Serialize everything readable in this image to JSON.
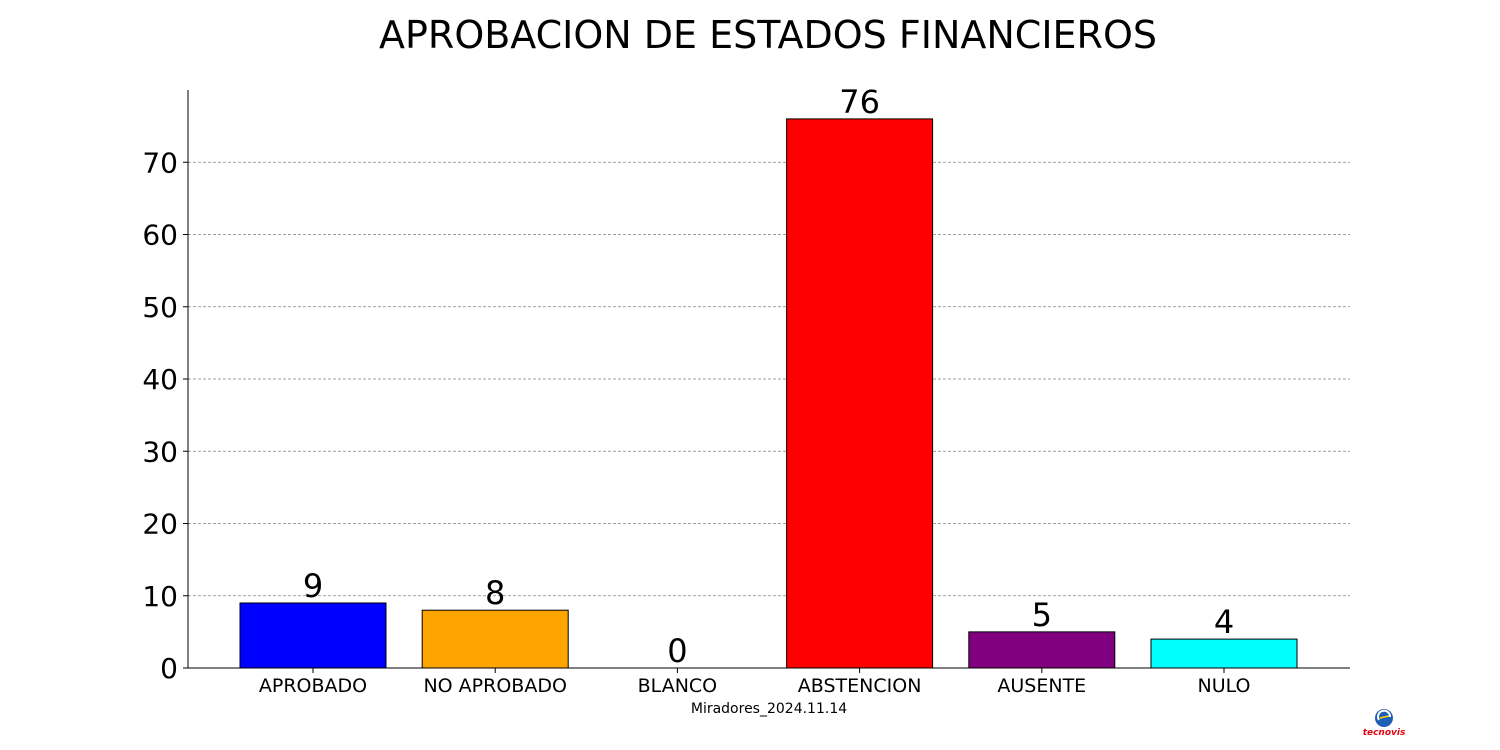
{
  "chart_data": {
    "type": "bar",
    "title": "APROBACION DE ESTADOS FINANCIEROS",
    "xlabel": "Miradores_2024.11.14",
    "ylabel": "",
    "categories": [
      "APROBADO",
      "NO APROBADO",
      "BLANCO",
      "ABSTENCION",
      "AUSENTE",
      "NULO"
    ],
    "values": [
      9,
      8,
      0,
      76,
      5,
      4
    ],
    "colors": [
      "#0000ff",
      "#ffa500",
      "#ffffff",
      "#ff0000",
      "#800080",
      "#00ffff"
    ],
    "ylim": [
      0,
      80
    ],
    "yticks": [
      0,
      10,
      20,
      30,
      40,
      50,
      60,
      70
    ],
    "grid": "horizontal dashed",
    "legend": "none"
  },
  "logo": {
    "name": "tecnovis-logo",
    "text": "tecnovis",
    "colors": [
      "#1d5fb5",
      "#e30613",
      "#ffd400"
    ]
  }
}
